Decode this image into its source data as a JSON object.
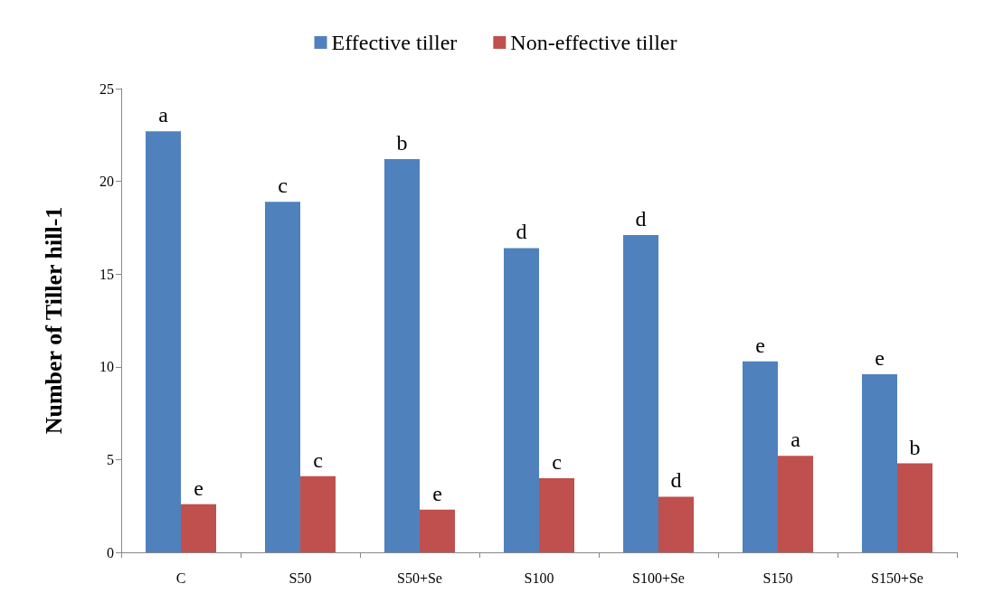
{
  "chart_data": {
    "type": "bar",
    "ylabel": "Number of Tiller hill-1",
    "categories": [
      "C",
      "S50",
      "S50+Se",
      "S100",
      "S100+Se",
      "S150",
      "S150+Se"
    ],
    "series": [
      {
        "name": "Effective tiller",
        "color": "#4f81bd",
        "values": [
          22.7,
          18.9,
          21.2,
          16.4,
          17.1,
          10.3,
          9.6
        ],
        "value_labels": [
          "a",
          "c",
          "b",
          "d",
          "d",
          "e",
          "e"
        ]
      },
      {
        "name": "Non-effective tiller",
        "color": "#c0504d",
        "values": [
          2.6,
          4.1,
          2.3,
          4.0,
          3.0,
          5.2,
          4.8
        ],
        "value_labels": [
          "e",
          "c",
          "e",
          "c",
          "d",
          "a",
          "b"
        ]
      }
    ],
    "ylim": [
      0,
      25
    ],
    "yticks": [
      0,
      5,
      10,
      15,
      20,
      25
    ],
    "grid": false,
    "legend": "top"
  }
}
